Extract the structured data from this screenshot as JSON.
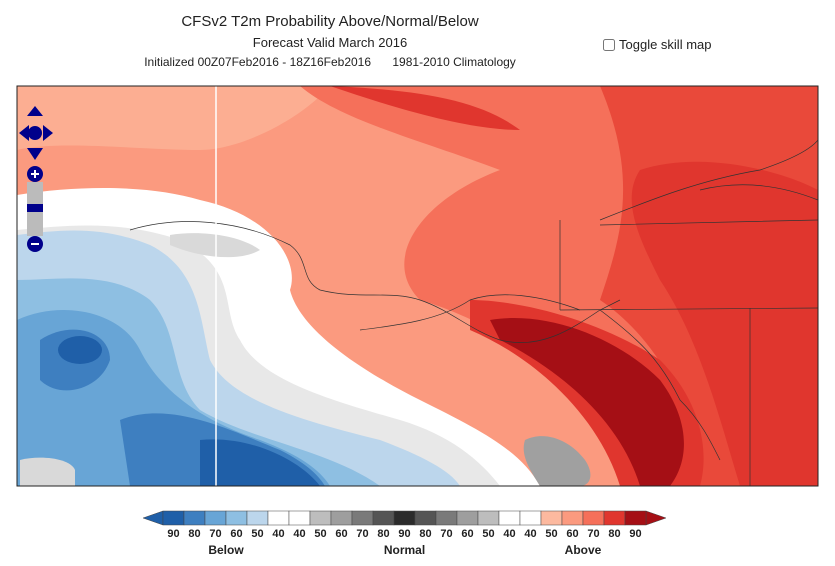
{
  "header": {
    "title": "CFSv2 T2m Probability Above/Normal/Below",
    "subtitle": "Forecast Valid March 2016",
    "initialized": "Initialized 00Z07Feb2016 - 18Z16Feb2016",
    "climatology": "1981-2010 Climatology"
  },
  "toggle": {
    "label": "Toggle skill map"
  },
  "legend": {
    "items": [
      {
        "label": 90,
        "color": "#1f5fa8"
      },
      {
        "label": 80,
        "color": "#3e7fc0"
      },
      {
        "label": 70,
        "color": "#68a5d6"
      },
      {
        "label": 60,
        "color": "#8ebfe2"
      },
      {
        "label": 50,
        "color": "#bcd6ec"
      },
      {
        "label": 40,
        "color": "#ffffff"
      },
      {
        "label": 40,
        "color": "#ffffff"
      },
      {
        "label": 50,
        "color": "#bdbdbd"
      },
      {
        "label": 60,
        "color": "#9e9e9e"
      },
      {
        "label": 70,
        "color": "#7a7a7a"
      },
      {
        "label": 80,
        "color": "#555555"
      },
      {
        "label": 90,
        "color": "#2b2b2b"
      },
      {
        "label": 80,
        "color": "#555555"
      },
      {
        "label": 70,
        "color": "#7a7a7a"
      },
      {
        "label": 60,
        "color": "#9e9e9e"
      },
      {
        "label": 50,
        "color": "#bdbdbd"
      },
      {
        "label": 40,
        "color": "#ffffff"
      },
      {
        "label": 40,
        "color": "#ffffff"
      },
      {
        "label": 50,
        "color": "#fcb99f"
      },
      {
        "label": 60,
        "color": "#fb9a7f"
      },
      {
        "label": 70,
        "color": "#f5705a"
      },
      {
        "label": 80,
        "color": "#e0362e"
      },
      {
        "label": 90,
        "color": "#a50f15"
      }
    ],
    "groups": [
      "Below",
      "Normal",
      "Above"
    ]
  }
}
